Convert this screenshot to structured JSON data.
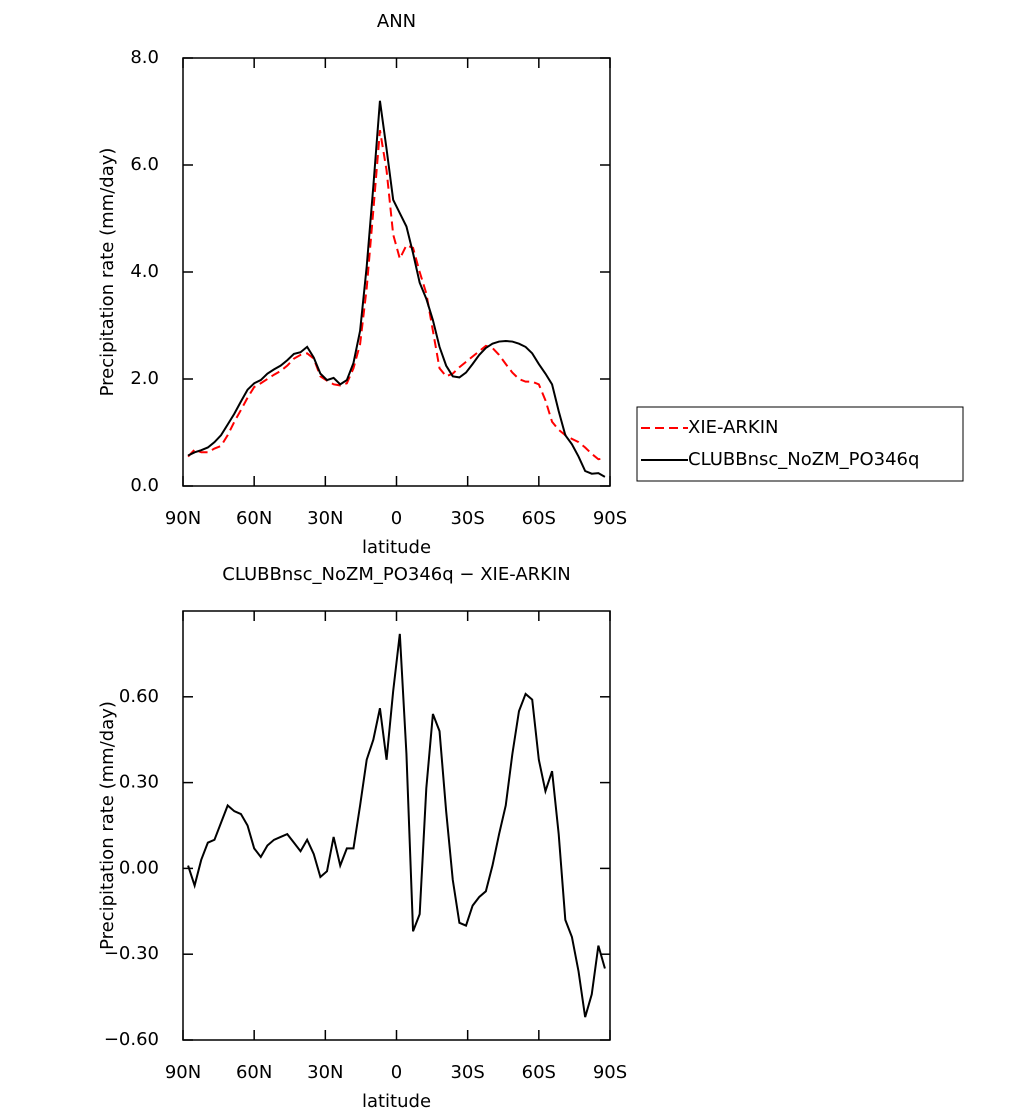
{
  "chart_data": [
    {
      "type": "line",
      "title": "ANN",
      "xlabel": "latitude",
      "ylabel": "Precipitation rate (mm/day)",
      "x": [
        87.86,
        85.1,
        82.31,
        79.53,
        76.74,
        73.95,
        71.16,
        68.37,
        65.58,
        62.79,
        60.0,
        57.21,
        54.42,
        51.63,
        48.84,
        46.05,
        43.25,
        40.46,
        37.67,
        34.88,
        32.09,
        29.3,
        26.51,
        23.72,
        20.93,
        18.14,
        15.35,
        12.56,
        9.77,
        6.98,
        4.19,
        1.4,
        -1.4,
        -4.19,
        -6.98,
        -9.77,
        -12.56,
        -15.35,
        -18.14,
        -20.93,
        -23.72,
        -26.51,
        -29.3,
        -32.09,
        -34.88,
        -37.67,
        -40.46,
        -43.25,
        -46.05,
        -48.84,
        -51.63,
        -54.42,
        -57.21,
        -60.0,
        -62.79,
        -65.58,
        -68.37,
        -71.16,
        -73.95,
        -76.74,
        -79.53,
        -82.31,
        -85.1,
        -87.86
      ],
      "series": [
        {
          "name": "XIE-ARKIN",
          "color": "#ff0000",
          "style": "dashed",
          "values": [
            0.55,
            0.68,
            0.63,
            0.63,
            0.7,
            0.75,
            0.95,
            1.2,
            1.42,
            1.65,
            1.85,
            1.92,
            2.0,
            2.08,
            2.15,
            2.25,
            2.38,
            2.45,
            2.48,
            2.38,
            2.05,
            1.97,
            1.9,
            1.88,
            1.92,
            2.2,
            2.65,
            3.7,
            5.15,
            6.65,
            5.9,
            4.7,
            4.25,
            4.5,
            4.45,
            4.0,
            3.6,
            2.9,
            2.2,
            2.05,
            2.1,
            2.22,
            2.32,
            2.42,
            2.52,
            2.62,
            2.58,
            2.45,
            2.28,
            2.12,
            2.0,
            1.95,
            1.95,
            1.9,
            1.6,
            1.2,
            1.05,
            0.95,
            0.88,
            0.82,
            0.72,
            0.6,
            0.5,
            0.52
          ]
        },
        {
          "name": "CLUBBnsc_NoZM_PO346q",
          "color": "#000000",
          "style": "solid",
          "values": [
            0.57,
            0.63,
            0.67,
            0.72,
            0.82,
            0.95,
            1.15,
            1.35,
            1.58,
            1.8,
            1.92,
            1.98,
            2.1,
            2.18,
            2.25,
            2.35,
            2.47,
            2.5,
            2.6,
            2.4,
            2.1,
            1.98,
            2.02,
            1.9,
            1.98,
            2.3,
            2.9,
            4.1,
            5.6,
            7.2,
            6.3,
            5.35,
            5.1,
            4.85,
            4.35,
            3.8,
            3.5,
            3.1,
            2.6,
            2.25,
            2.05,
            2.03,
            2.12,
            2.28,
            2.45,
            2.58,
            2.66,
            2.7,
            2.71,
            2.7,
            2.66,
            2.6,
            2.48,
            2.28,
            2.1,
            1.9,
            1.4,
            0.95,
            0.78,
            0.55,
            0.28,
            0.23,
            0.24,
            0.17
          ]
        }
      ],
      "xlim": [
        90,
        -90
      ],
      "xticks": [
        {
          "value": 90,
          "label": "90N"
        },
        {
          "value": 60,
          "label": "60N"
        },
        {
          "value": 30,
          "label": "30N"
        },
        0,
        {
          "value": -30,
          "label": "30S"
        },
        {
          "value": -60,
          "label": "60S"
        },
        {
          "value": -90,
          "label": "90S"
        }
      ],
      "ylim": [
        0,
        8
      ],
      "yticks": [
        {
          "value": 0,
          "label": "0.0"
        },
        {
          "value": 2,
          "label": "2.0"
        },
        {
          "value": 4,
          "label": "4.0"
        },
        {
          "value": 6,
          "label": "6.0"
        },
        {
          "value": 8,
          "label": "8.0"
        }
      ]
    },
    {
      "type": "line",
      "title": "CLUBBnsc_NoZM_PO346q − XIE-ARKIN",
      "xlabel": "latitude",
      "ylabel": "Precipitation rate (mm/day)",
      "x": [
        87.86,
        85.1,
        82.31,
        79.53,
        76.74,
        73.95,
        71.16,
        68.37,
        65.58,
        62.79,
        60.0,
        57.21,
        54.42,
        51.63,
        48.84,
        46.05,
        43.25,
        40.46,
        37.67,
        34.88,
        32.09,
        29.3,
        26.51,
        23.72,
        20.93,
        18.14,
        15.35,
        12.56,
        9.77,
        6.98,
        4.19,
        1.4,
        -1.4,
        -4.19,
        -6.98,
        -9.77,
        -12.56,
        -15.35,
        -18.14,
        -20.93,
        -23.72,
        -26.51,
        -29.3,
        -32.09,
        -34.88,
        -37.67,
        -40.46,
        -43.25,
        -46.05,
        -48.84,
        -51.63,
        -54.42,
        -57.21,
        -60.0,
        -62.79,
        -65.58,
        -68.37,
        -71.16,
        -73.95,
        -76.74,
        -79.53,
        -82.31,
        -85.1,
        -87.86
      ],
      "series": [
        {
          "color": "#000000",
          "style": "solid",
          "values": [
            0.01,
            -0.06,
            0.03,
            0.09,
            0.1,
            0.16,
            0.22,
            0.2,
            0.19,
            0.15,
            0.07,
            0.04,
            0.08,
            0.1,
            0.11,
            0.12,
            0.09,
            0.06,
            0.1,
            0.05,
            -0.03,
            -0.01,
            0.11,
            0.01,
            0.07,
            0.07,
            0.22,
            0.38,
            0.45,
            0.56,
            0.38,
            0.62,
            0.82,
            0.4,
            -0.22,
            -0.16,
            0.28,
            0.54,
            0.48,
            0.2,
            -0.04,
            -0.19,
            -0.2,
            -0.13,
            -0.1,
            -0.08,
            0.01,
            0.12,
            0.22,
            0.4,
            0.55,
            0.61,
            0.59,
            0.38,
            0.27,
            0.34,
            0.12,
            -0.18,
            -0.24,
            -0.36,
            -0.52,
            -0.44,
            -0.27,
            -0.35
          ]
        }
      ],
      "xlim": [
        90,
        -90
      ],
      "xticks": [
        {
          "value": 90,
          "label": "90N"
        },
        {
          "value": 60,
          "label": "60N"
        },
        {
          "value": 30,
          "label": "30N"
        },
        0,
        {
          "value": -30,
          "label": "30S"
        },
        {
          "value": -60,
          "label": "60S"
        },
        {
          "value": -90,
          "label": "90S"
        }
      ],
      "ylim": [
        -0.6,
        0.9
      ],
      "yticks": [
        {
          "value": -0.6,
          "label": "−0.60"
        },
        {
          "value": -0.3,
          "label": "−0.30"
        },
        {
          "value": 0,
          "label": "0.00"
        },
        {
          "value": 0.3,
          "label": "0.30"
        },
        {
          "value": 0.6,
          "label": "0.60"
        }
      ]
    }
  ]
}
